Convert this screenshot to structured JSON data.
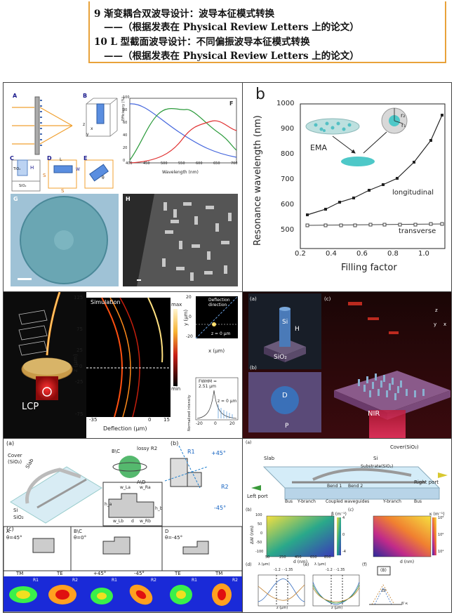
{
  "header": {
    "line1": "9 渐变耦合双波导设计：波导本征模式转换",
    "line2": "——（根据发表在 Physical Review Letters 上的论文）",
    "line3": "10 L 型截面波导设计：不同偏振波导本征模式转换",
    "line4": "——（根据发表在 Physical Review Letters 上的论文）"
  },
  "panel_metalens": {
    "letters": [
      "A",
      "B",
      "C",
      "D",
      "E",
      "F",
      "G",
      "H"
    ],
    "efficiency_axis_label": "Efficiency (%)",
    "wavelength_axis_label": "Wavelength (nm)",
    "y_ticks": [
      "0",
      "20",
      "40",
      "60",
      "80",
      "100"
    ],
    "x_ticks": [
      "400",
      "450",
      "500",
      "550",
      "600",
      "650",
      "700"
    ],
    "labels": {
      "tio2": "TiO₂",
      "sio2": "SiO₂",
      "H": "H",
      "L": "L",
      "W": "W",
      "S1": "S",
      "S2": "S",
      "theta": "θ",
      "x": "x",
      "y": "y",
      "z": "z"
    }
  },
  "panel_resonance": {
    "letter": "b",
    "ylabel": "Resonance wavelength (nm)",
    "xlabel": "Filling factor",
    "y_ticks": [
      "500",
      "600",
      "700",
      "800",
      "900",
      "1000"
    ],
    "x_ticks": [
      "0.2",
      "0.4",
      "0.6",
      "0.8",
      "1.0"
    ],
    "ema_label": "EMA",
    "r1": "r₁",
    "r2": "r₂",
    "longitudinal_label": "longitudinal",
    "transverse_label": "transverse"
  },
  "panel_deflection": {
    "simulation_label": "Simulation",
    "lcp_label": "LCP",
    "colorbar_max": "max",
    "colorbar_min": "min",
    "z_axis_label": "z (μm)",
    "z_ticks": [
      "125",
      "75",
      "25",
      "0",
      "-25",
      "-75"
    ],
    "x_label": "Deflection (μm)",
    "x_ticks": [
      "-35",
      "0",
      "15"
    ],
    "deflection_direction": "Deflection direction",
    "y_label_small": "y (μm)",
    "small_y_ticks": [
      "20",
      "0",
      "-20"
    ],
    "small_x_label": "x (μm)",
    "small_x_ticks": [
      "-20",
      "0",
      "20"
    ],
    "z0_label": "z = 0 μm",
    "fwhm_label": "FWHM = 2.51 μm",
    "norm_intensity_label": "Normalized intensity"
  },
  "panel_nir": {
    "a": "(a)",
    "b": "(b)",
    "c": "(c)",
    "si": "Si",
    "h": "H",
    "sio2": "SiO₂",
    "d": "D",
    "p": "P",
    "nir": "NIR",
    "x": "x",
    "y": "y",
    "z": "z"
  },
  "panel_lwaveguide": {
    "a": "(a)",
    "b": "(b)",
    "c": "(c)",
    "cover": "Cover",
    "cover2": "(SiO₂)",
    "slab": "Slab",
    "si": "Si",
    "sio2": "SiO₂",
    "lossy": "lossy R2",
    "bc": "B\\C",
    "ad": "A\\D",
    "r1": "R1",
    "r2": "R2",
    "plus45": "+45°",
    "minus45": "-45°",
    "wla": "w_La",
    "wra": "w_Ra",
    "ha": "h_a",
    "hb": "h_b",
    "wlb": "w_Lb",
    "wrb": "w_Rb",
    "d": "d",
    "a_case": "A",
    "a_theta": "θ=45°",
    "bc_case": "B\\C",
    "bc_theta": "θ=0°",
    "d_case": "D",
    "d_theta": "θ=-45°",
    "mode_labels": [
      "TM",
      "TE",
      "+45°",
      "-45°",
      "TE",
      "TM"
    ],
    "mode_r": [
      "R1",
      "R2",
      "R1",
      "R2",
      "R1",
      "R2"
    ]
  },
  "panel_coupler": {
    "a": "(a)",
    "b": "(b)",
    "c": "(c)",
    "d": "(d)",
    "e": "(e)",
    "f": "(f)",
    "cover": "Cover(SiO₂)",
    "si": "Si",
    "slab": "Slab",
    "substrate": "Substrate(SiO₂)",
    "left_port": "Left port",
    "right_port": "Right port",
    "bus1": "Bus",
    "ybranch1": "Y-branch",
    "coupled": "Coupled waveguides",
    "ybranch2": "Y-branch",
    "bus2": "Bus",
    "bend1": "Bend 1",
    "bend2": "Bend 2",
    "dw_label": "ΔW (nm)",
    "d_label": "d (nm)",
    "beta_label": "β (m⁻¹)",
    "kappa_label": "κ (m⁻¹)",
    "b_y_ticks": [
      "100",
      "50",
      "0",
      "-50",
      "-100"
    ],
    "b_x_ticks": [
      "50",
      "250",
      "450",
      "650",
      "850"
    ],
    "b_cbar": [
      "4",
      "0",
      "-4"
    ],
    "c_cbar": [
      "10⁸",
      "10⁶",
      "10⁴"
    ],
    "lambda_label": "λ (μm)",
    "lambda_vals": "-1.2 · -1.35",
    "z_label": "z (μm)",
    "z_ticks": [
      "0",
      "40",
      "80",
      "120"
    ],
    "eb_label": "(B)",
    "ep_label": "EP",
    "beta_x": "β'·κ"
  }
}
